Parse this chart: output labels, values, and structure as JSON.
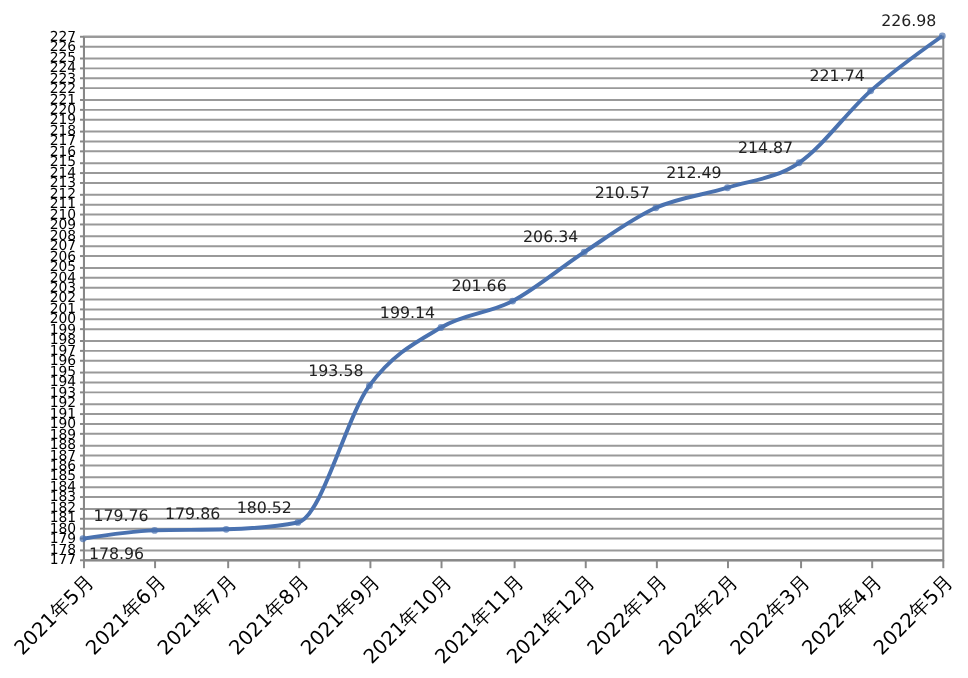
{
  "chart_data": {
    "type": "line",
    "categories": [
      "2021年5月",
      "2021年6月",
      "2021年7月",
      "2021年8月",
      "2021年9月",
      "2021年10月",
      "2021年11月",
      "2021年12月",
      "2022年1月",
      "2022年2月",
      "2022年3月",
      "2022年4月",
      "2022年5月"
    ],
    "series": [
      {
        "color": "#4a72b0",
        "values": [
          178.96,
          179.76,
          179.86,
          180.52,
          193.58,
          199.14,
          201.66,
          206.34,
          210.57,
          212.49,
          214.87,
          221.74,
          226.98
        ]
      }
    ],
    "ylim": [
      177,
      227
    ],
    "yticks": [
      177,
      178,
      179,
      180,
      181,
      182,
      183,
      184,
      185,
      186,
      187,
      188,
      189,
      190,
      191,
      192,
      193,
      194,
      195,
      196,
      197,
      198,
      199,
      200,
      201,
      202,
      203,
      204,
      205,
      206,
      207,
      208,
      209,
      210,
      211,
      212,
      213,
      214,
      215,
      216,
      217,
      218,
      219,
      220,
      221,
      222,
      223,
      224,
      225,
      226,
      227
    ],
    "grid": "y",
    "data_labels": true,
    "marker": "circle",
    "line_style": "solid"
  }
}
